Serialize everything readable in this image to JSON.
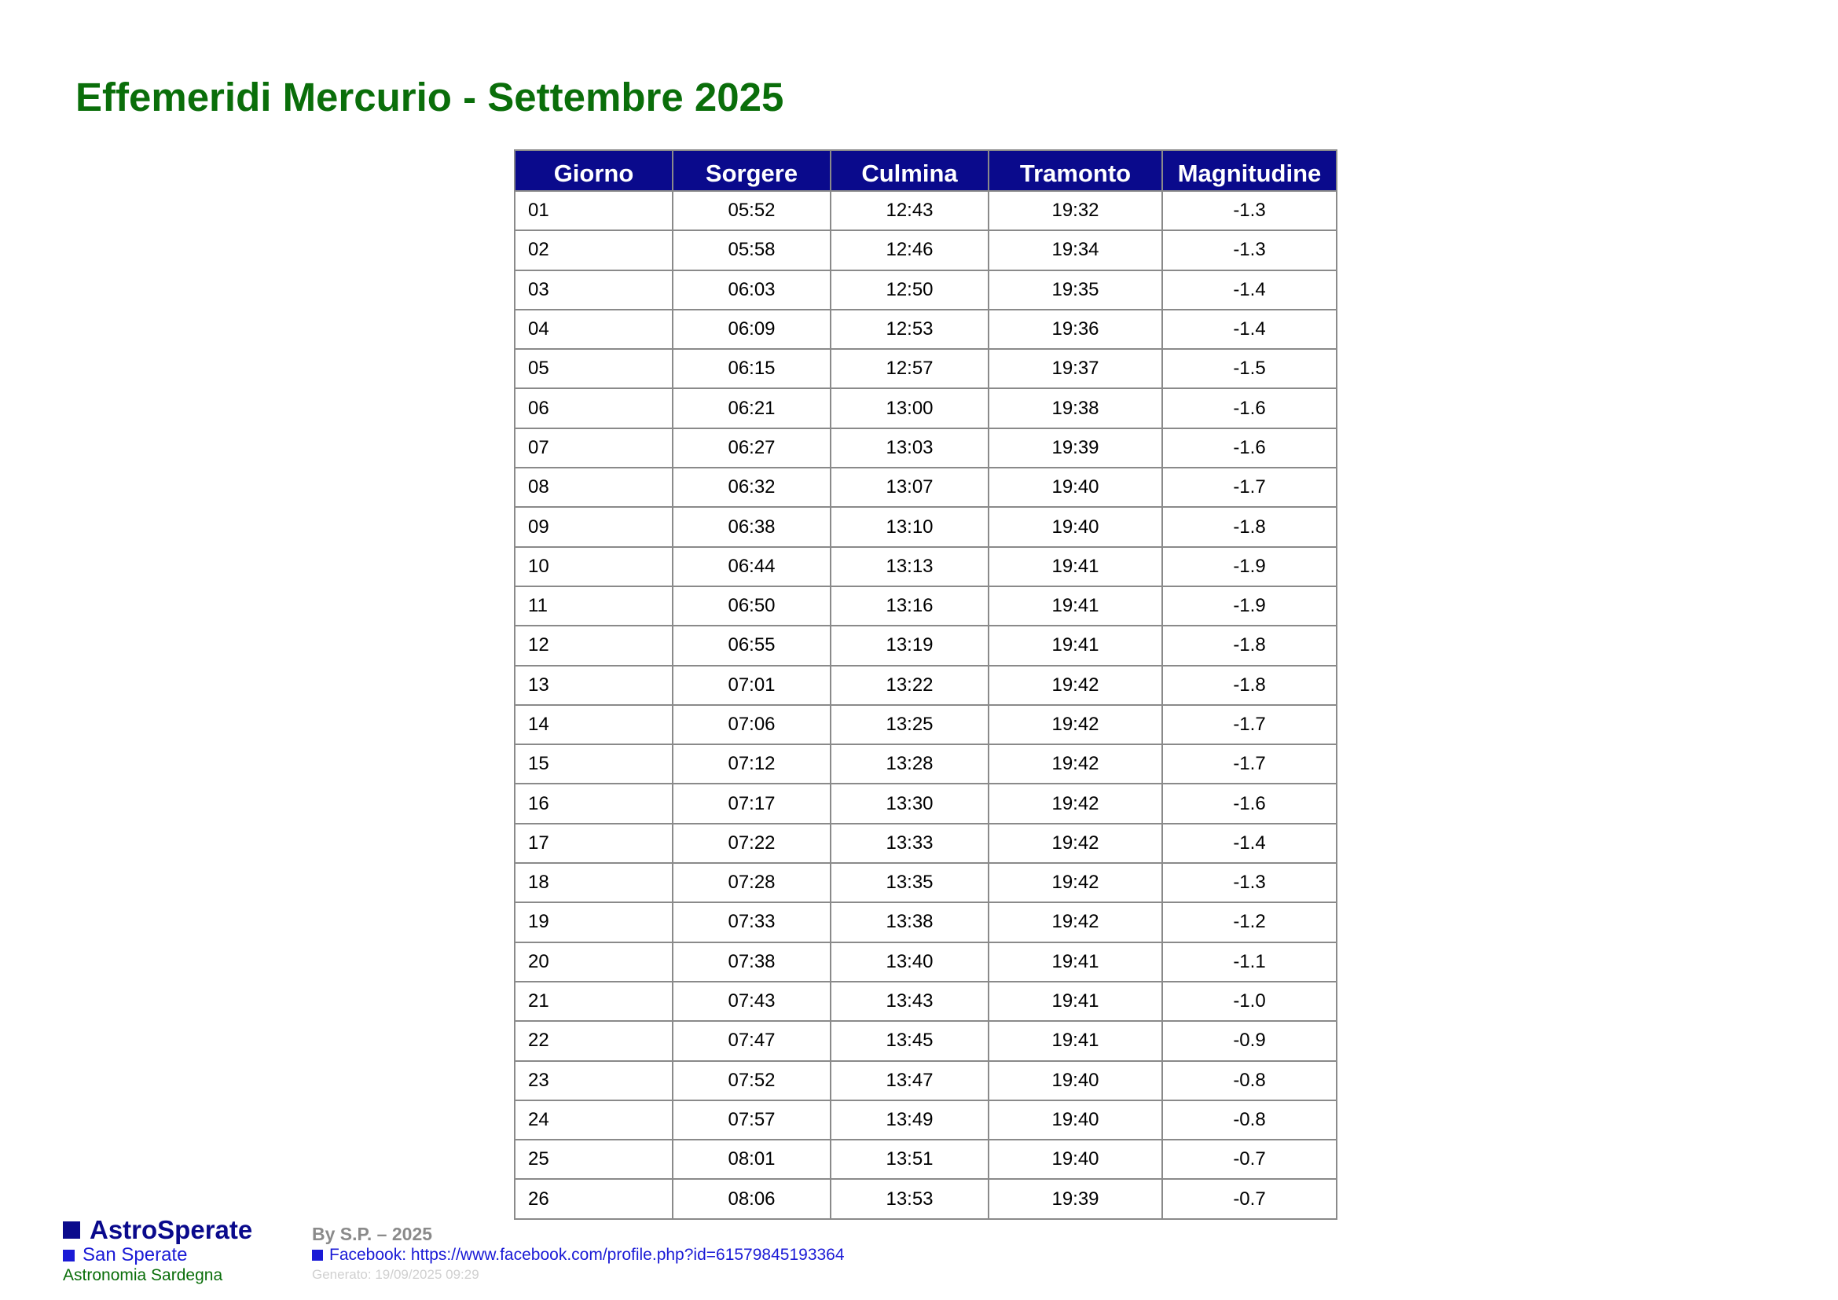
{
  "title": "Effemeridi Mercurio - Settembre 2025",
  "table": {
    "headers": [
      "Giorno",
      "Sorgere",
      "Culmina",
      "Tramonto",
      "Magnitudine"
    ],
    "rows": [
      [
        "01",
        "05:52",
        "12:43",
        "19:32",
        "-1.3"
      ],
      [
        "02",
        "05:58",
        "12:46",
        "19:34",
        "-1.3"
      ],
      [
        "03",
        "06:03",
        "12:50",
        "19:35",
        "-1.4"
      ],
      [
        "04",
        "06:09",
        "12:53",
        "19:36",
        "-1.4"
      ],
      [
        "05",
        "06:15",
        "12:57",
        "19:37",
        "-1.5"
      ],
      [
        "06",
        "06:21",
        "13:00",
        "19:38",
        "-1.6"
      ],
      [
        "07",
        "06:27",
        "13:03",
        "19:39",
        "-1.6"
      ],
      [
        "08",
        "06:32",
        "13:07",
        "19:40",
        "-1.7"
      ],
      [
        "09",
        "06:38",
        "13:10",
        "19:40",
        "-1.8"
      ],
      [
        "10",
        "06:44",
        "13:13",
        "19:41",
        "-1.9"
      ],
      [
        "11",
        "06:50",
        "13:16",
        "19:41",
        "-1.9"
      ],
      [
        "12",
        "06:55",
        "13:19",
        "19:41",
        "-1.8"
      ],
      [
        "13",
        "07:01",
        "13:22",
        "19:42",
        "-1.8"
      ],
      [
        "14",
        "07:06",
        "13:25",
        "19:42",
        "-1.7"
      ],
      [
        "15",
        "07:12",
        "13:28",
        "19:42",
        "-1.7"
      ],
      [
        "16",
        "07:17",
        "13:30",
        "19:42",
        "-1.6"
      ],
      [
        "17",
        "07:22",
        "13:33",
        "19:42",
        "-1.4"
      ],
      [
        "18",
        "07:28",
        "13:35",
        "19:42",
        "-1.3"
      ],
      [
        "19",
        "07:33",
        "13:38",
        "19:42",
        "-1.2"
      ],
      [
        "20",
        "07:38",
        "13:40",
        "19:41",
        "-1.1"
      ],
      [
        "21",
        "07:43",
        "13:43",
        "19:41",
        "-1.0"
      ],
      [
        "22",
        "07:47",
        "13:45",
        "19:41",
        "-0.9"
      ],
      [
        "23",
        "07:52",
        "13:47",
        "19:40",
        "-0.8"
      ],
      [
        "24",
        "07:57",
        "13:49",
        "19:40",
        "-0.8"
      ],
      [
        "25",
        "08:01",
        "13:51",
        "19:40",
        "-0.7"
      ],
      [
        "26",
        "08:06",
        "13:53",
        "19:39",
        "-0.7"
      ]
    ]
  },
  "footer": {
    "brand": "AstroSperate",
    "location": "San Sperate",
    "tagline": "Astronomia Sardegna",
    "author": "By S.P. – 2025",
    "facebook": "Facebook: https://www.facebook.com/profile.php?id=61579845193364",
    "generated": "Generato: 19/09/2025 09:29"
  },
  "colors": {
    "title": "#0a6e0a",
    "header_bg": "#0a0a8c",
    "brand": "#0a0a8c",
    "link": "#1a1ad6",
    "tagline": "#0a6e0a",
    "muted": "#8a8a8a",
    "faint": "#d0d0d0"
  }
}
